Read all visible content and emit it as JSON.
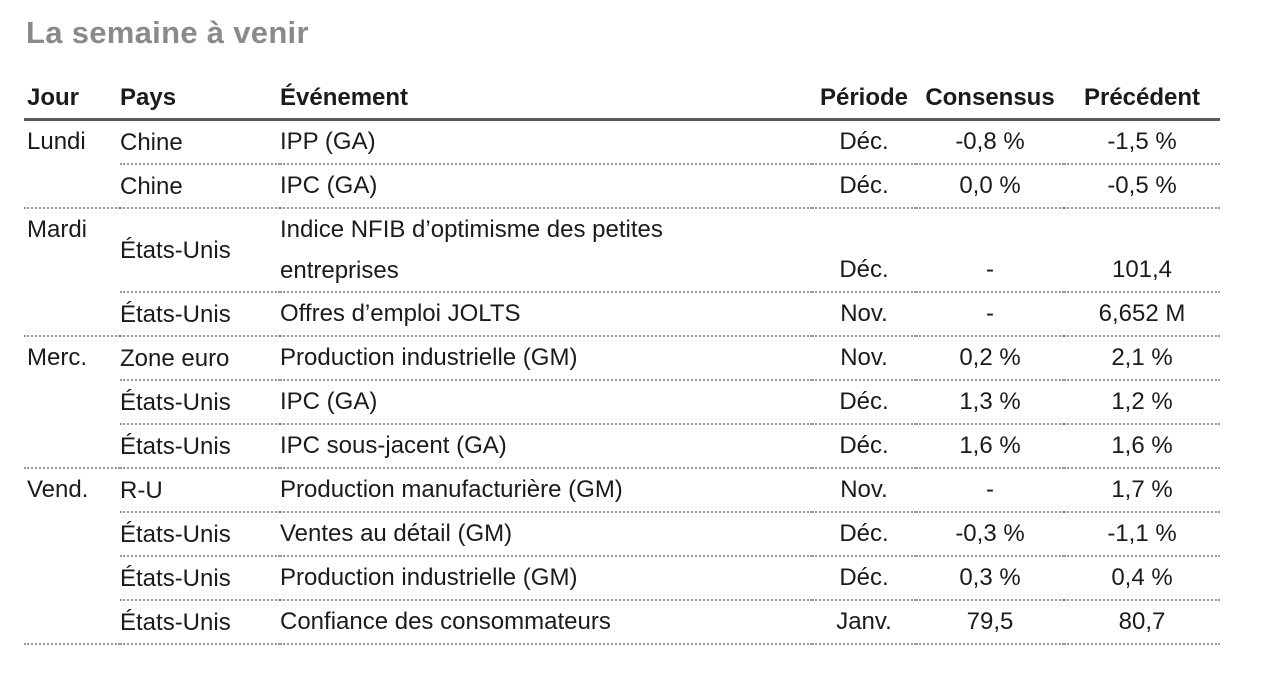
{
  "title": "La semaine à venir",
  "colors": {
    "background": "#ffffff",
    "text": "#1b1b1b",
    "title": "#8a8a8a",
    "header_rule": "#58595b",
    "row_rule": "#999999"
  },
  "table": {
    "headers": {
      "jour": "Jour",
      "pays": "Pays",
      "evenement": "Événement",
      "periode": "Période",
      "consensus": "Consensus",
      "precedent": "Précédent"
    },
    "rows": [
      {
        "jour": "Lundi",
        "pays": "Chine",
        "evenement": "IPP (GA)",
        "periode": "Déc.",
        "consensus": "-0,8 %",
        "precedent": "-1,5 %",
        "group_end": false
      },
      {
        "jour": "",
        "pays": "Chine",
        "evenement": "IPC (GA)",
        "periode": "Déc.",
        "consensus": "0,0 %",
        "precedent": "-0,5 %",
        "group_end": true
      },
      {
        "jour": "Mardi",
        "pays": "États-Unis",
        "evenement": "Indice NFIB d’optimisme des petites\nentreprises",
        "periode": "Déc.",
        "consensus": "-",
        "precedent": "101,4",
        "group_end": false
      },
      {
        "jour": "",
        "pays": "États-Unis",
        "evenement": "Offres d’emploi JOLTS",
        "periode": "Nov.",
        "consensus": "-",
        "precedent": "6,652 M",
        "group_end": true
      },
      {
        "jour": "Merc.",
        "pays": "Zone euro",
        "evenement": "Production industrielle (GM)",
        "periode": "Nov.",
        "consensus": "0,2 %",
        "precedent": "2,1 %",
        "group_end": false
      },
      {
        "jour": "",
        "pays": "États-Unis",
        "evenement": "IPC (GA)",
        "periode": "Déc.",
        "consensus": "1,3 %",
        "precedent": "1,2 %",
        "group_end": false
      },
      {
        "jour": "",
        "pays": "États-Unis",
        "evenement": "IPC sous-jacent (GA)",
        "periode": "Déc.",
        "consensus": "1,6 %",
        "precedent": "1,6 %",
        "group_end": true
      },
      {
        "jour": "Vend.",
        "pays": "R-U",
        "evenement": "Production manufacturière (GM)",
        "periode": "Nov.",
        "consensus": "-",
        "precedent": "1,7 %",
        "group_end": false
      },
      {
        "jour": "",
        "pays": "États-Unis",
        "evenement": "Ventes au détail (GM)",
        "periode": "Déc.",
        "consensus": "-0,3 %",
        "precedent": "-1,1 %",
        "group_end": false
      },
      {
        "jour": "",
        "pays": "États-Unis",
        "evenement": "Production industrielle (GM)",
        "periode": "Déc.",
        "consensus": "0,3 %",
        "precedent": "0,4 %",
        "group_end": false
      },
      {
        "jour": "",
        "pays": "États-Unis",
        "evenement": "Confiance des consommateurs",
        "periode": "Janv.",
        "consensus": "79,5",
        "precedent": "80,7",
        "group_end": true
      }
    ]
  }
}
